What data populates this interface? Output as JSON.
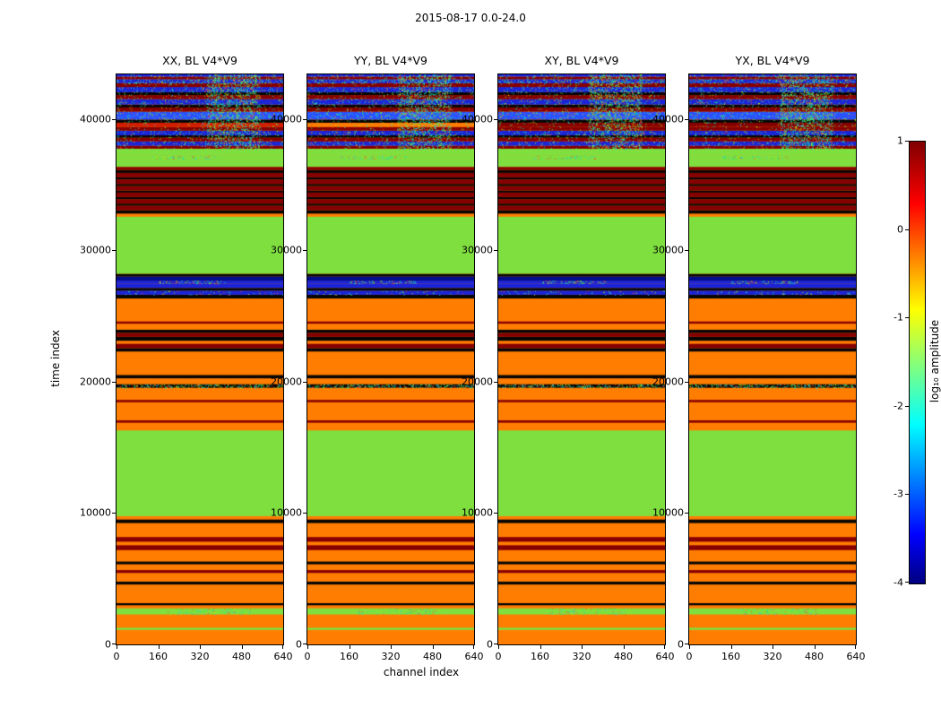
{
  "figure": {
    "title": "2015-08-17 0.0-24.0",
    "xlabel": "channel index",
    "ylabel": "time index",
    "background": "#ffffff"
  },
  "panels": [
    {
      "title": "XX, BL V4*V9"
    },
    {
      "title": "YY, BL V4*V9"
    },
    {
      "title": "XY, BL V4*V9"
    },
    {
      "title": "YX, BL V4*V9"
    }
  ],
  "axes": {
    "x_ticks": [
      "0",
      "160",
      "320",
      "480",
      "640"
    ],
    "x_tick_values": [
      0,
      160,
      320,
      480,
      640
    ],
    "x_range": [
      0,
      640
    ],
    "y_ticks": [
      "0",
      "10000",
      "20000",
      "30000",
      "40000"
    ],
    "y_tick_values": [
      0,
      10000,
      20000,
      30000,
      40000
    ],
    "y_range": [
      0,
      43400
    ]
  },
  "colorbar": {
    "label": "log₁₀ amplitude",
    "range": [
      -4,
      1
    ],
    "tick_values": [
      1,
      0,
      -1,
      -2,
      -3,
      -4
    ],
    "tick_labels": [
      "1",
      "0",
      "-1",
      "-2",
      "-3",
      "-4"
    ],
    "stops": [
      [
        "0%",
        "#800000"
      ],
      [
        "14%",
        "#ff0000"
      ],
      [
        "38%",
        "#ffff00"
      ],
      [
        "64%",
        "#00ffff"
      ],
      [
        "89%",
        "#0000ff"
      ],
      [
        "100%",
        "#000080"
      ]
    ]
  },
  "chart_data": {
    "type": "heatmap",
    "title": "2015-08-17 0.0-24.0",
    "xlabel": "channel index",
    "ylabel": "time index",
    "colorbar_label": "log₁₀ amplitude",
    "colorbar_range": [
      -4,
      1
    ],
    "panels": [
      "XX, BL V4*V9",
      "YY, BL V4*V9",
      "XY, BL V4*V9",
      "YX, BL V4*V9"
    ],
    "x_range": [
      0,
      640
    ],
    "t_max": 43400,
    "palette": {
      "orange": "#ff7d00",
      "green": "#7fdf3f",
      "darkred": "#860000",
      "red": "#d21c00",
      "black": "#050505",
      "blue": "#1b24d8",
      "brightblue": "#2a50ff",
      "darkblue": "#000c8a",
      "cyan": "#00d4d4"
    },
    "noise_colors": [
      "#00e6b4",
      "#3cf05a",
      "#b4f000",
      "#28c8ff",
      "#ff5028"
    ],
    "bands_schema": [
      "t_start",
      "t_end",
      "color_key (array = per-panel)",
      "log10_amplitude",
      "noise {d:density,x0,x1,colors}"
    ],
    "bands": [
      [
        0,
        1100,
        "orange",
        -0.3
      ],
      [
        1100,
        1280,
        "green",
        -1.5
      ],
      [
        1280,
        2280,
        "orange",
        -0.3
      ],
      [
        2280,
        2760,
        "green",
        -1.6,
        {
          "d": 0.12,
          "x0": 0.3,
          "x1": 0.8
        }
      ],
      [
        2760,
        2980,
        "orange",
        -0.3
      ],
      [
        2980,
        3140,
        "black",
        null
      ],
      [
        3140,
        4560,
        "orange",
        -0.3
      ],
      [
        4560,
        4780,
        "black",
        null
      ],
      [
        4780,
        5440,
        "orange",
        -0.3
      ],
      [
        5440,
        5660,
        "darkred",
        0.9
      ],
      [
        5660,
        6100,
        "orange",
        -0.3
      ],
      [
        6100,
        6320,
        "black",
        null
      ],
      [
        6320,
        7180,
        "orange",
        -0.3
      ],
      [
        7180,
        7560,
        "darkred",
        0.9
      ],
      [
        7560,
        7820,
        "orange",
        -0.3
      ],
      [
        7820,
        8180,
        "darkred",
        0.9
      ],
      [
        8180,
        9240,
        "orange",
        -0.3
      ],
      [
        9240,
        9520,
        "black",
        null
      ],
      [
        9520,
        9760,
        "orange",
        -0.3
      ],
      [
        9760,
        16300,
        "green",
        -1.5
      ],
      [
        16300,
        16880,
        "orange",
        -0.3
      ],
      [
        16880,
        17060,
        "darkred",
        0.9
      ],
      [
        17060,
        18440,
        "orange",
        -0.3
      ],
      [
        18440,
        18620,
        "darkred",
        0.9
      ],
      [
        18620,
        19540,
        "orange",
        -0.3
      ],
      [
        19540,
        19820,
        "black",
        null,
        {
          "d": 0.35
        }
      ],
      [
        19820,
        20260,
        "orange",
        -0.3
      ],
      [
        20260,
        20520,
        "black",
        null
      ],
      [
        20520,
        22300,
        "orange",
        -0.3
      ],
      [
        22300,
        22560,
        "black",
        null
      ],
      [
        22560,
        22900,
        "darkred",
        0.9
      ],
      [
        22900,
        23120,
        "orange",
        -0.3
      ],
      [
        23120,
        23420,
        "black",
        null
      ],
      [
        23420,
        23720,
        "darkred",
        0.9
      ],
      [
        23720,
        23960,
        "black",
        null
      ],
      [
        23960,
        24420,
        "orange",
        -0.3
      ],
      [
        24420,
        24600,
        "darkred",
        0.9
      ],
      [
        24600,
        26340,
        "orange",
        -0.3
      ],
      [
        26340,
        26620,
        "black",
        null
      ],
      [
        26620,
        26940,
        "blue",
        -3.2,
        {
          "d": 0.06
        }
      ],
      [
        26940,
        27140,
        "black",
        null
      ],
      [
        27140,
        27480,
        "blue",
        -3.2
      ],
      [
        27480,
        27700,
        "blue",
        -2.6,
        {
          "d": 0.3,
          "x0": 0.25,
          "x1": 0.65
        }
      ],
      [
        27700,
        28020,
        "darkblue",
        -3.7
      ],
      [
        28020,
        28220,
        "black",
        null
      ],
      [
        28220,
        32580,
        "green",
        -1.5
      ],
      [
        32580,
        32800,
        "orange",
        -0.3
      ],
      [
        32800,
        33060,
        "black",
        null
      ],
      [
        33060,
        33400,
        "darkred",
        0.9
      ],
      [
        33400,
        33560,
        "black",
        null
      ],
      [
        33560,
        33900,
        "darkred",
        0.9
      ],
      [
        33900,
        34060,
        "black",
        null
      ],
      [
        34060,
        34400,
        "darkred",
        0.9
      ],
      [
        34400,
        34560,
        "black",
        null
      ],
      [
        34560,
        34900,
        "darkred",
        0.9
      ],
      [
        34900,
        35060,
        "black",
        null
      ],
      [
        35060,
        35400,
        "darkred",
        0.9
      ],
      [
        35400,
        35560,
        "black",
        null
      ],
      [
        35560,
        35900,
        "darkred",
        0.9
      ],
      [
        35900,
        36120,
        "black",
        null
      ],
      [
        36120,
        36360,
        "darkred",
        0.9
      ],
      [
        36360,
        36980,
        "green",
        -1.5
      ],
      [
        36980,
        37200,
        "green",
        -1.8,
        {
          "d": 0.25,
          "x0": 0.2,
          "x1": 0.6
        }
      ],
      [
        37200,
        37740,
        "green",
        -1.5
      ],
      [
        37740,
        37960,
        "darkred",
        0.9
      ],
      [
        37960,
        38300,
        "blue",
        -3.2,
        {
          "d": 0.06
        }
      ],
      [
        38300,
        38580,
        "darkred",
        0.9
      ],
      [
        38580,
        38760,
        "black",
        null
      ],
      [
        38760,
        39120,
        "blue",
        -3.2,
        {
          "d": 0.06
        }
      ],
      [
        39120,
        39400,
        "darkred",
        0.9
      ],
      [
        39400,
        39720,
        [
          "red",
          "orange",
          "darkred",
          "darkred"
        ],
        0.3
      ],
      [
        39720,
        39960,
        "black",
        null
      ],
      [
        39960,
        40560,
        "brightblue",
        -3.0,
        {
          "d": 0.08
        }
      ],
      [
        40560,
        40880,
        "darkred",
        0.9
      ],
      [
        40880,
        41100,
        "black",
        null
      ],
      [
        41100,
        41520,
        "blue",
        -3.2,
        {
          "d": 0.06
        }
      ],
      [
        41520,
        41820,
        "darkred",
        0.9
      ],
      [
        41820,
        42040,
        "black",
        null
      ],
      [
        42040,
        42440,
        "blue",
        -3.2,
        {
          "d": 0.06
        }
      ],
      [
        42440,
        42720,
        "darkred",
        0.9
      ],
      [
        42720,
        43040,
        "blue",
        -2.8,
        {
          "d": 0.2
        }
      ],
      [
        43040,
        43220,
        "darkred",
        0.9
      ],
      [
        43220,
        43400,
        "blue",
        -3.2,
        {
          "d": 0.08
        }
      ]
    ],
    "patches": [
      {
        "t0": 37740,
        "t1": 43400,
        "x0": 0.54,
        "x1": 0.86,
        "d": 0.3
      },
      {
        "t0": 37740,
        "t1": 43400,
        "x0": 0.0,
        "x1": 1.0,
        "d": 0.05
      }
    ]
  }
}
